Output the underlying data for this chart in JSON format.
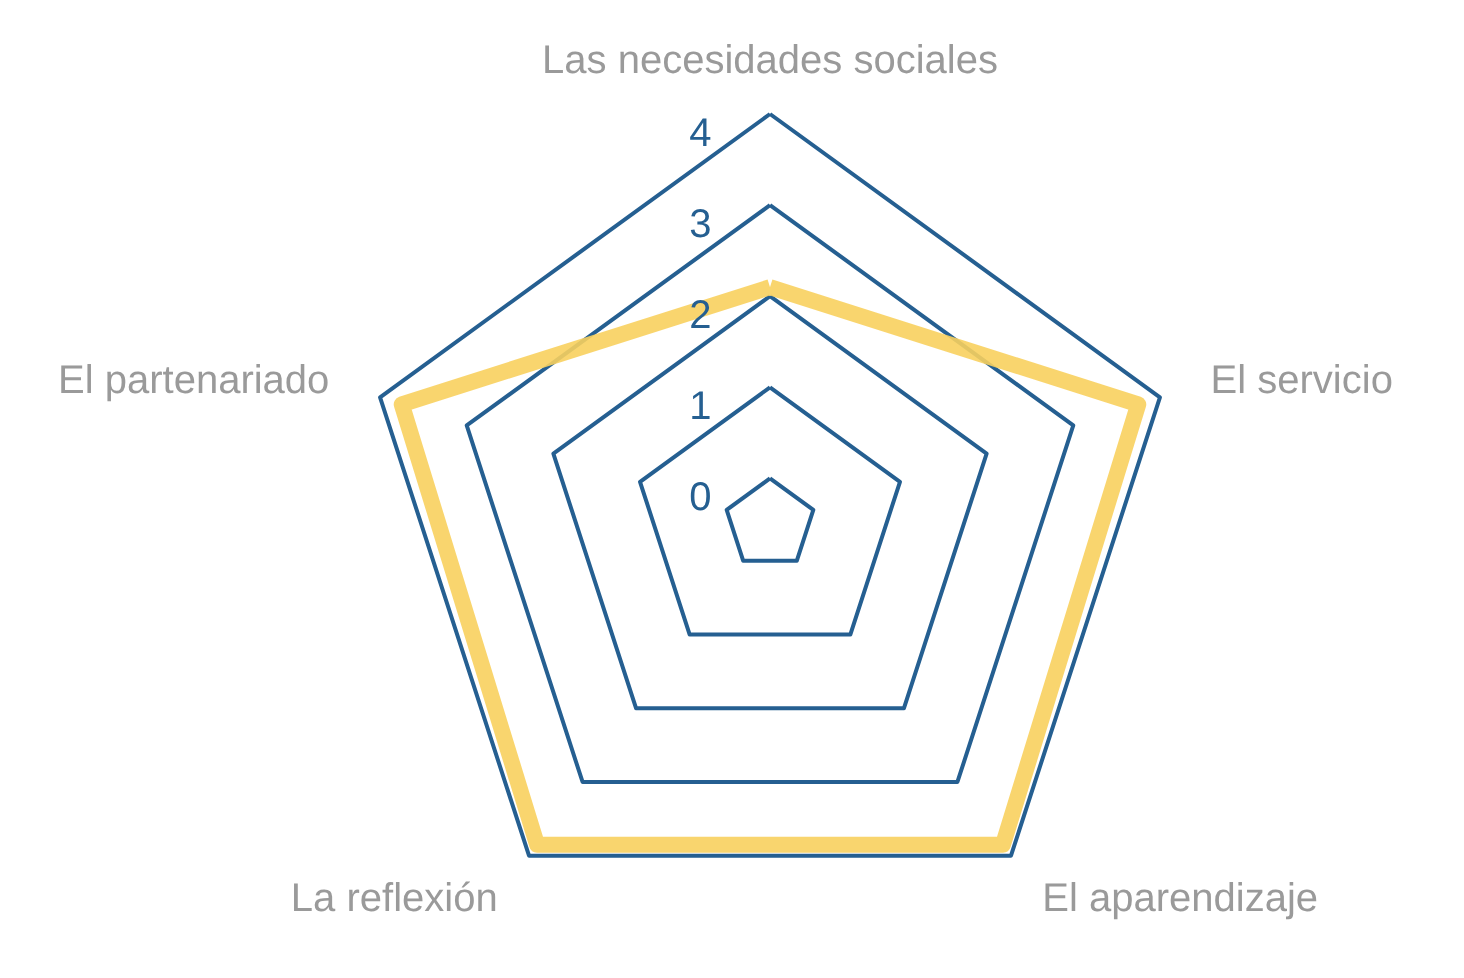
{
  "chart_data": {
    "type": "radar",
    "categories": [
      "Las necesidades sociales",
      "El servicio",
      "El aparendizaje",
      "La reflexión",
      "El partenariado"
    ],
    "series": [
      {
        "color": "#f8d05e",
        "values": [
          2.1,
          3.75,
          3.85,
          3.85,
          3.75
        ]
      }
    ],
    "ylim": [
      -0.5,
      4
    ],
    "yticks": [
      0,
      1,
      2,
      3,
      4
    ],
    "grid": true
  }
}
